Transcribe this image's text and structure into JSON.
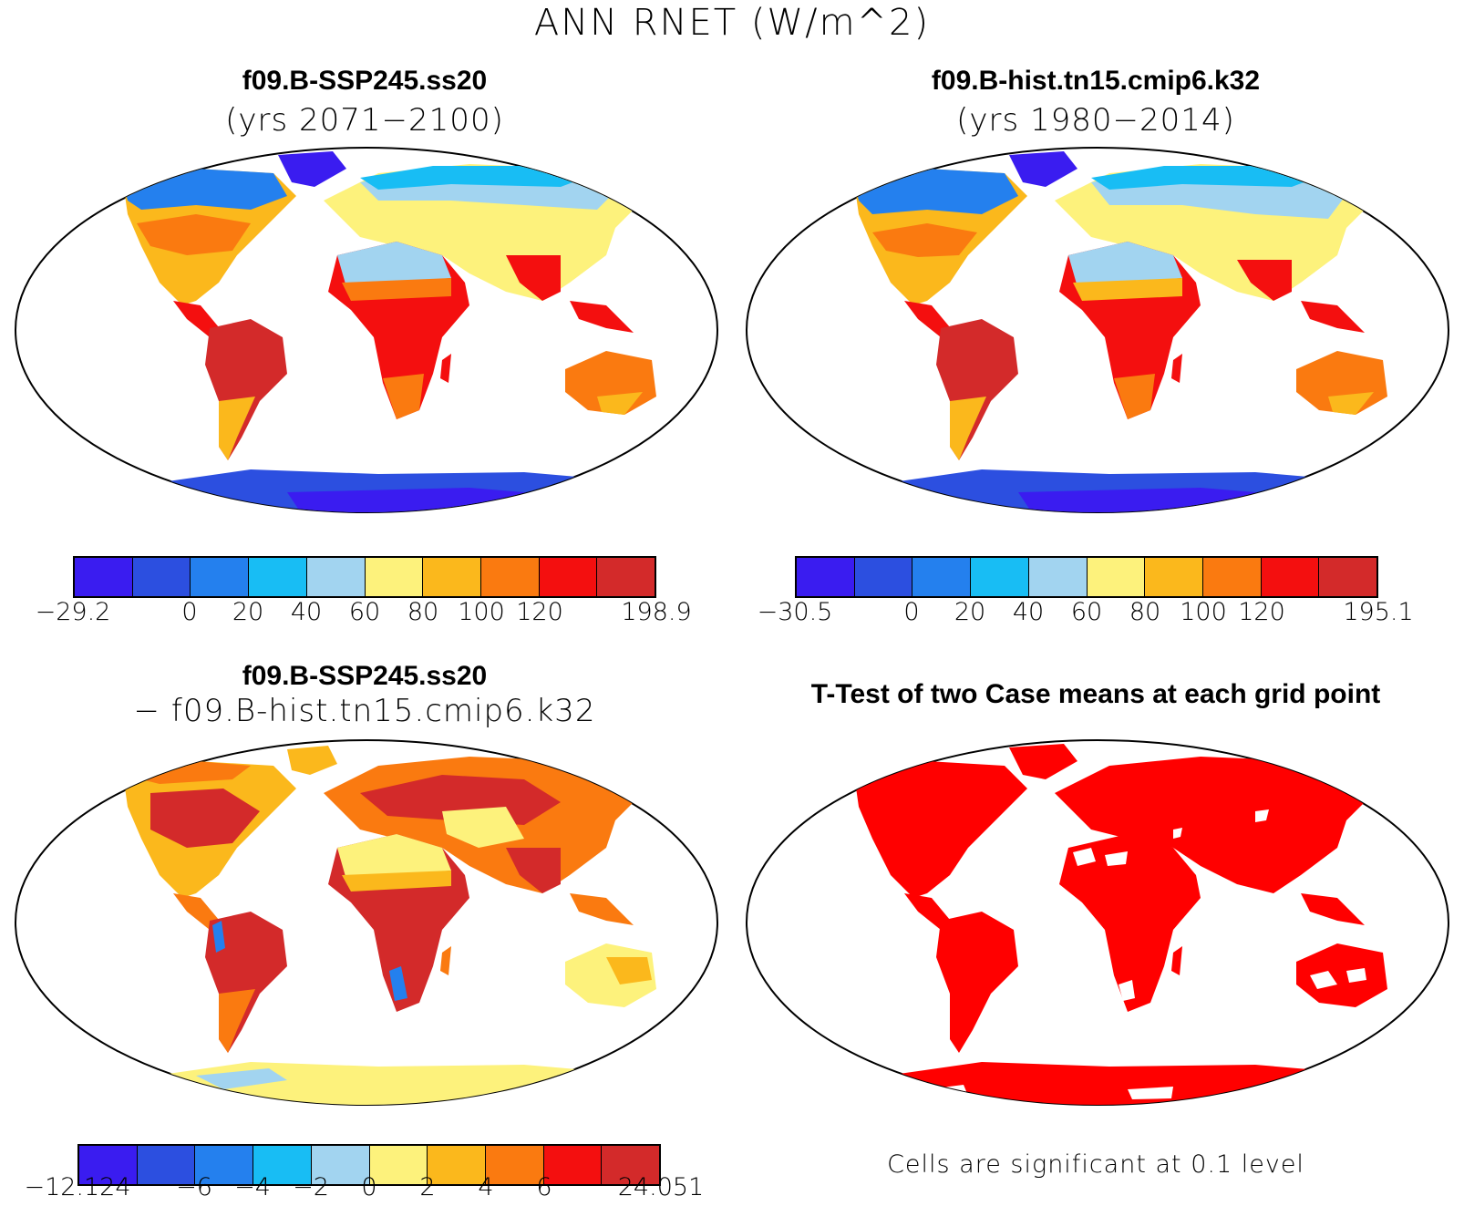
{
  "title": "ANN RNET (W/m^2)",
  "panels": {
    "p1": {
      "title": "f09.B-SSP245.ss20",
      "subtitle": "(yrs 2071−2100)"
    },
    "p2": {
      "title": "f09.B-hist.tn15.cmip6.k32",
      "subtitle": "(yrs 1980−2014)"
    },
    "p3": {
      "title": "f09.B-SSP245.ss20",
      "subtitle": "− f09.B-hist.tn15.cmip6.k32"
    },
    "p4": {
      "title": "T-Test of two Case means at each grid point",
      "footnote": "Cells are significant at 0.1 level"
    }
  },
  "colorbars": {
    "cb1": {
      "colors": [
        "#3a1cf0",
        "#2c4fe0",
        "#2480ee",
        "#18bdf4",
        "#a2d4f0",
        "#fdf27c",
        "#fbb81c",
        "#fa7a10",
        "#f40f0f",
        "#d32a2a"
      ],
      "labels": [
        "−29.2",
        "",
        "0",
        "20",
        "40",
        "60",
        "80",
        "100",
        "120",
        "",
        "198.9"
      ]
    },
    "cb2": {
      "colors": [
        "#3a1cf0",
        "#2c4fe0",
        "#2480ee",
        "#18bdf4",
        "#a2d4f0",
        "#fdf27c",
        "#fbb81c",
        "#fa7a10",
        "#f40f0f",
        "#d32a2a"
      ],
      "labels": [
        "−30.5",
        "",
        "0",
        "20",
        "40",
        "60",
        "80",
        "100",
        "120",
        "",
        "195.1"
      ]
    },
    "cb3": {
      "colors": [
        "#3a1cf0",
        "#2c4fe0",
        "#2480ee",
        "#18bdf4",
        "#a2d4f0",
        "#fdf27c",
        "#fbb81c",
        "#fa7a10",
        "#f40f0f",
        "#d32a2a"
      ],
      "labels": [
        "−12.124",
        "",
        "−6",
        "−4",
        "−2",
        "0",
        "2",
        "4",
        "6",
        "",
        "24.051"
      ]
    }
  }
}
